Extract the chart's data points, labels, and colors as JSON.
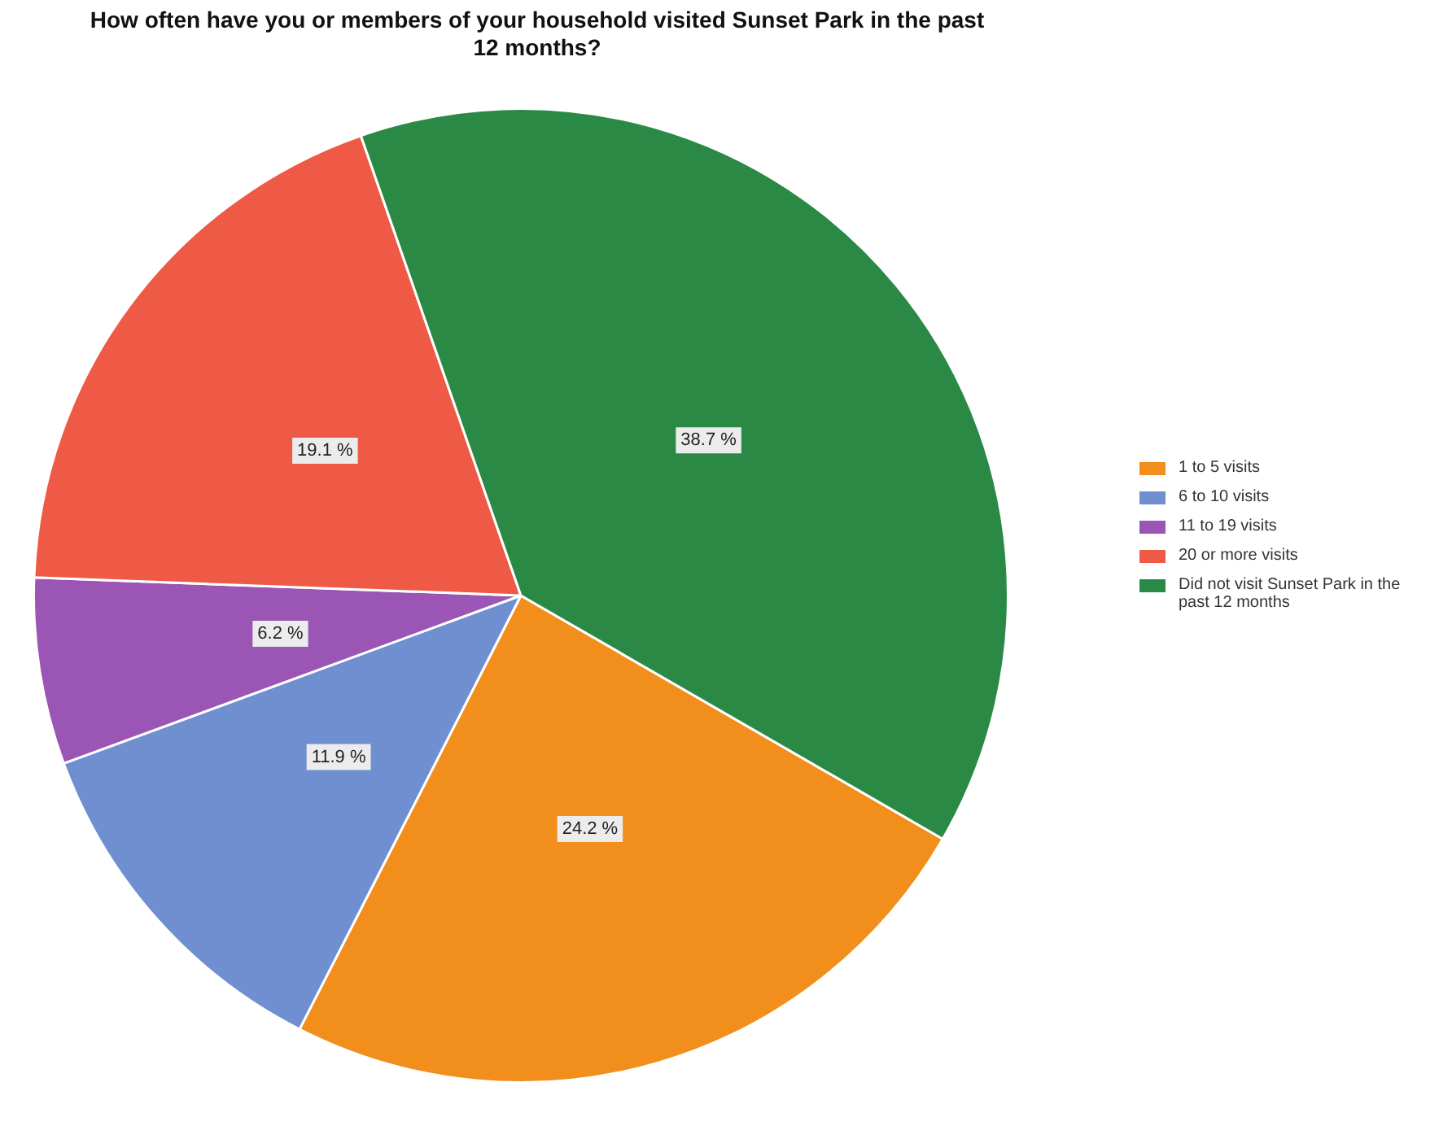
{
  "chart_data": {
    "type": "pie",
    "title": "How often have you or members of your household visited Sunset Park in the past 12 months?",
    "categories": [
      "1 to 5 visits",
      "6 to 10 visits",
      "11 to 19 visits",
      "20 or more visits",
      "Did not visit Sunset Park in the past 12 months"
    ],
    "values": [
      24.2,
      11.9,
      6.2,
      19.1,
      38.7
    ],
    "colors": [
      "#f28e1c",
      "#6f8fd0",
      "#9a55b5",
      "#ee5a45",
      "#2a8a45"
    ],
    "value_labels": [
      "24.2 %",
      "11.9 %",
      "6.2 %",
      "19.1 %",
      "38.7 %"
    ],
    "legend": "right"
  }
}
